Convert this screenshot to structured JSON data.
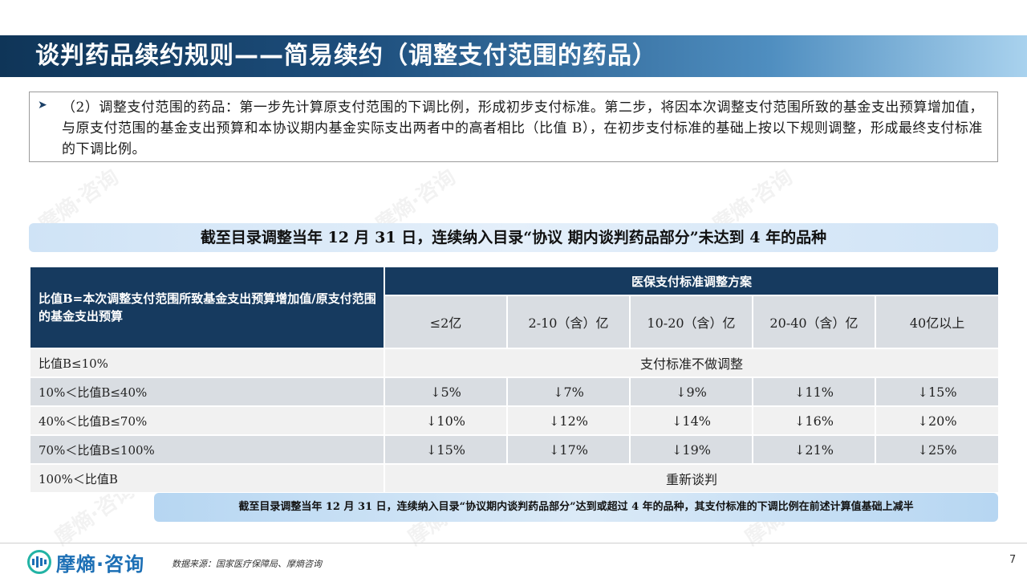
{
  "header": {
    "title": "谈判药品续约规则——简易续约（调整支付范围的药品）"
  },
  "intro": {
    "bullet_icon": "arrow-bullet-icon",
    "text": "（2）调整支付范围的药品：第一步先计算原支付范围的下调比例，形成初步支付标准。第二步，将因本次调整支付范围所致的基金支出预算增加值，与原支付范围的基金支出预算和本协议期内基金实际支出两者中的高者相比（比值 B），在初步支付标准的基础上按以下规则调整，形成最终支付标准的下调比例。"
  },
  "banner": {
    "text": "截至目录调整当年 12 月 31 日，连续纳入目录“协议 期内谈判药品部分”未达到 4 年的品种"
  },
  "table": {
    "left_header": "比值B=本次调整支付范围所致基金支出预算增加值/原支付范围的基金支出预算",
    "top_header": "医保支付标准调整方案",
    "columns": [
      "≤2亿",
      "2-10（含）亿",
      "10-20（含）亿",
      "20-40（含）亿",
      "40亿以上"
    ],
    "rows": [
      {
        "label": "比值B≤10%",
        "merged": "支付标准不做调整"
      },
      {
        "label": "10%＜比值B≤40%",
        "values": [
          "↓5%",
          "↓7%",
          "↓9%",
          "↓11%",
          "↓15%"
        ]
      },
      {
        "label": "40%＜比值B≤70%",
        "values": [
          "↓10%",
          "↓12%",
          "↓14%",
          "↓16%",
          "↓20%"
        ]
      },
      {
        "label": "70%＜比值B≤100%",
        "values": [
          "↓15%",
          "↓17%",
          "↓19%",
          "↓21%",
          "↓25%"
        ]
      },
      {
        "label": "100%＜比值B",
        "merged": "重新谈判"
      }
    ]
  },
  "footnote": {
    "text": "截至目录调整当年 12 月 31 日，连续纳入目录“协议期内谈判药品部分”达到或超过 4 年的品种，其支付标准的下调比例在前述计算值基础上减半"
  },
  "footer": {
    "logo_text": "摩熵·咨询",
    "source": "数据来源：国家医疗保障局、摩熵咨询",
    "page_number": "7"
  },
  "watermark": {
    "text": "摩熵·咨询"
  },
  "colors": {
    "title_dark": "#0f3558",
    "table_header": "#163a5f",
    "banner": "#cfe3f6",
    "row_light": "#f1f1f1",
    "row_dark": "#d9dde2",
    "logo": "#1c6fb5"
  }
}
